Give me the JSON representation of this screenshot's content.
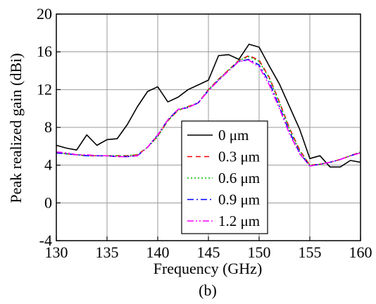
{
  "chart_data": {
    "type": "line",
    "xlabel": "Frequency (GHz)",
    "ylabel": "Peak realized gain (dBi)",
    "xlim": [
      130,
      160
    ],
    "ylim": [
      -4,
      20
    ],
    "xticks": [
      130,
      135,
      140,
      145,
      150,
      155,
      160
    ],
    "yticks": [
      -4,
      0,
      4,
      8,
      12,
      16,
      20
    ],
    "grid": true,
    "legend_position": "lower-middle",
    "caption": "(b)",
    "series": [
      {
        "name": "0 μm",
        "color": "#000000",
        "dash": "solid",
        "x": [
          130,
          131,
          132,
          133,
          134,
          135,
          136,
          137,
          138,
          139,
          140,
          141,
          142,
          143,
          144,
          145,
          146,
          147,
          148,
          149,
          150,
          151,
          152,
          153,
          154,
          155,
          156,
          157,
          158,
          159,
          160
        ],
        "values": [
          6.1,
          5.8,
          5.6,
          7.2,
          6.1,
          6.7,
          6.8,
          8.3,
          10.2,
          11.8,
          12.3,
          10.7,
          11.2,
          12.0,
          12.5,
          13.0,
          15.6,
          15.7,
          15.2,
          16.8,
          16.5,
          14.5,
          12.6,
          10.2,
          7.8,
          4.7,
          5.0,
          3.8,
          3.8,
          4.5,
          4.3
        ]
      },
      {
        "name": "0.3 μm",
        "color": "#ff0000",
        "dash": "dashed",
        "x": [
          130,
          131,
          132,
          133,
          134,
          135,
          136,
          137,
          138,
          139,
          140,
          141,
          142,
          143,
          144,
          145,
          146,
          147,
          148,
          149,
          150,
          151,
          152,
          153,
          154,
          155,
          156,
          157,
          158,
          159,
          160
        ],
        "values": [
          5.3,
          5.2,
          5.1,
          5.0,
          5.0,
          5.0,
          5.0,
          5.0,
          5.1,
          5.9,
          7.1,
          8.7,
          9.8,
          10.2,
          10.6,
          12.0,
          13.1,
          14.1,
          15.1,
          15.6,
          15.1,
          13.3,
          10.7,
          7.9,
          5.6,
          4.0,
          4.1,
          4.3,
          4.6,
          5.0,
          5.4
        ]
      },
      {
        "name": "0.6 μm",
        "color": "#00bb00",
        "dash": "dotted",
        "x": [
          130,
          131,
          132,
          133,
          134,
          135,
          136,
          137,
          138,
          139,
          140,
          141,
          142,
          143,
          144,
          145,
          146,
          147,
          148,
          149,
          150,
          151,
          152,
          153,
          154,
          155,
          156,
          157,
          158,
          159,
          160
        ],
        "values": [
          5.3,
          5.2,
          5.1,
          5.0,
          5.0,
          5.0,
          5.0,
          5.0,
          5.1,
          5.9,
          7.0,
          8.7,
          9.8,
          10.2,
          10.6,
          12.0,
          13.1,
          14.1,
          15.1,
          15.5,
          15.0,
          13.2,
          10.6,
          7.8,
          5.5,
          4.0,
          4.1,
          4.3,
          4.6,
          5.0,
          5.4
        ]
      },
      {
        "name": "0.9 μm",
        "color": "#0000ff",
        "dash": "dashdot",
        "x": [
          130,
          131,
          132,
          133,
          134,
          135,
          136,
          137,
          138,
          139,
          140,
          141,
          142,
          143,
          144,
          145,
          146,
          147,
          148,
          149,
          150,
          151,
          152,
          153,
          154,
          155,
          156,
          157,
          158,
          159,
          160
        ],
        "values": [
          5.3,
          5.2,
          5.1,
          5.0,
          5.0,
          5.0,
          4.9,
          4.9,
          5.0,
          5.9,
          7.2,
          8.8,
          9.9,
          10.1,
          10.6,
          11.9,
          13.0,
          14.0,
          15.0,
          15.2,
          14.6,
          12.8,
          10.2,
          7.5,
          5.3,
          3.9,
          4.1,
          4.3,
          4.6,
          5.0,
          5.3
        ]
      },
      {
        "name": "1.2 μm",
        "color": "#ff00ff",
        "dash": "dashdotdot",
        "x": [
          130,
          131,
          132,
          133,
          134,
          135,
          136,
          137,
          138,
          139,
          140,
          141,
          142,
          143,
          144,
          145,
          146,
          147,
          148,
          149,
          150,
          151,
          152,
          153,
          154,
          155,
          156,
          157,
          158,
          159,
          160
        ],
        "values": [
          5.4,
          5.3,
          5.1,
          5.1,
          5.0,
          5.0,
          4.9,
          4.9,
          5.0,
          5.9,
          7.2,
          8.8,
          9.9,
          10.1,
          10.6,
          11.9,
          13.0,
          14.0,
          15.0,
          15.1,
          14.4,
          12.5,
          10.0,
          7.3,
          5.2,
          3.9,
          4.1,
          4.3,
          4.6,
          5.0,
          5.3
        ]
      }
    ]
  }
}
